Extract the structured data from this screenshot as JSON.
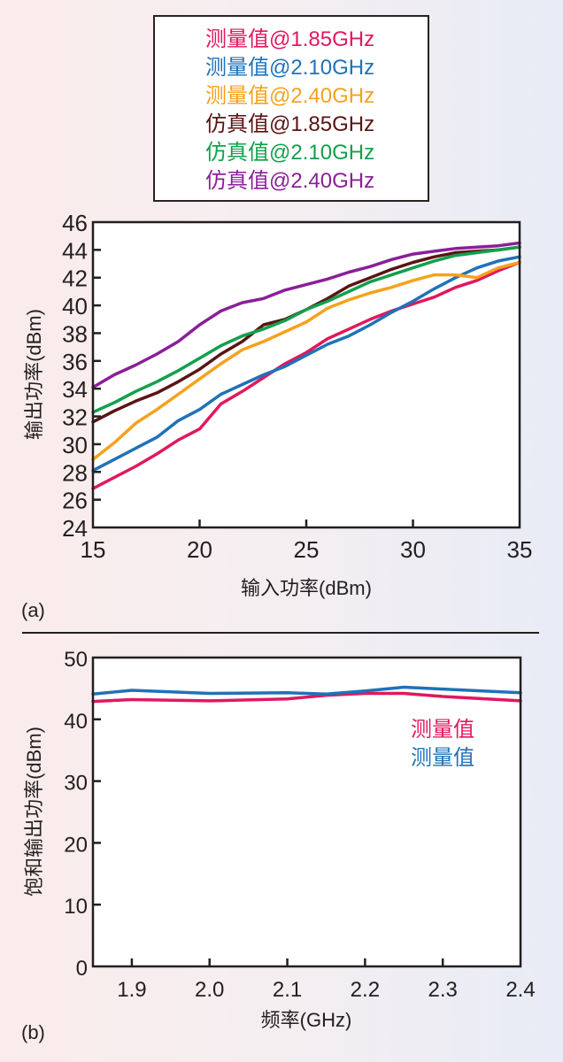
{
  "legend": [
    {
      "label": "测量值@1.85GHz",
      "color": "#e0185f"
    },
    {
      "label": "测量值@2.10GHz",
      "color": "#1f72b8"
    },
    {
      "label": "测量值@2.40GHz",
      "color": "#f5a21c"
    },
    {
      "label": "仿真值@1.85GHz",
      "color": "#5a1414"
    },
    {
      "label": "仿真值@2.10GHz",
      "color": "#12a04c"
    },
    {
      "label": "仿真值@2.40GHz",
      "color": "#8a1f98"
    }
  ],
  "chart_data": [
    {
      "panel_label": "(a)",
      "type": "line",
      "title": "",
      "xlabel": "输入功率(dBm)",
      "ylabel": "输出功率(dBm)",
      "xlim": [
        15,
        35
      ],
      "ylim": [
        24,
        46
      ],
      "xticks": [
        15,
        20,
        25,
        30,
        35
      ],
      "yticks": [
        24,
        26,
        28,
        30,
        32,
        34,
        36,
        38,
        40,
        42,
        44,
        46
      ],
      "grid": false,
      "legend_position": "top-center (above plot)",
      "x": [
        15,
        16,
        17,
        18,
        19,
        20,
        21,
        22,
        23,
        24,
        25,
        26,
        27,
        28,
        29,
        30,
        31,
        32,
        33,
        34,
        35
      ],
      "series": [
        {
          "name": "测量值@1.85GHz",
          "color": "#e0185f",
          "values": [
            26.8,
            27.6,
            28.4,
            29.3,
            30.3,
            31.1,
            32.9,
            33.8,
            34.8,
            35.8,
            36.6,
            37.6,
            38.3,
            39.0,
            39.6,
            40.1,
            40.6,
            41.3,
            41.8,
            42.5,
            43.1
          ]
        },
        {
          "name": "测量值@2.10GHz",
          "color": "#1f72b8",
          "values": [
            28.1,
            28.9,
            29.7,
            30.5,
            31.7,
            32.5,
            33.6,
            34.3,
            35.0,
            35.6,
            36.4,
            37.2,
            37.8,
            38.6,
            39.5,
            40.3,
            41.2,
            42.0,
            42.7,
            43.2,
            43.5
          ]
        },
        {
          "name": "测量值@2.40GHz",
          "color": "#f5a21c",
          "values": [
            28.9,
            30.1,
            31.5,
            32.5,
            33.6,
            34.7,
            35.8,
            36.8,
            37.4,
            38.1,
            38.8,
            39.8,
            40.4,
            40.9,
            41.3,
            41.8,
            42.2,
            42.2,
            42.0,
            42.7,
            43.1
          ]
        },
        {
          "name": "仿真值@1.85GHz",
          "color": "#5a1414",
          "values": [
            31.6,
            32.4,
            33.1,
            33.7,
            34.5,
            35.4,
            36.5,
            37.4,
            38.6,
            39.0,
            39.7,
            40.5,
            41.4,
            42.0,
            42.6,
            43.1,
            43.5,
            43.8,
            43.9,
            44.0,
            44.2
          ]
        },
        {
          "name": "仿真值@2.10GHz",
          "color": "#12a04c",
          "values": [
            32.3,
            33.0,
            33.8,
            34.5,
            35.3,
            36.2,
            37.1,
            37.8,
            38.3,
            38.9,
            39.7,
            40.3,
            41.0,
            41.7,
            42.2,
            42.7,
            43.2,
            43.6,
            43.8,
            44.0,
            44.2
          ]
        },
        {
          "name": "仿真值@2.40GHz",
          "color": "#8a1f98",
          "values": [
            34.1,
            35.0,
            35.7,
            36.5,
            37.4,
            38.6,
            39.6,
            40.2,
            40.5,
            41.1,
            41.5,
            41.9,
            42.4,
            42.8,
            43.3,
            43.7,
            43.9,
            44.1,
            44.2,
            44.3,
            44.5
          ]
        }
      ]
    },
    {
      "panel_label": "(b)",
      "type": "line",
      "title": "",
      "xlabel": "频率(GHz)",
      "ylabel": "饱和输出功率(dBm)",
      "xlim": [
        1.85,
        2.4
      ],
      "ylim": [
        0,
        50
      ],
      "xticks": [
        "1.9",
        "2.0",
        "2.1",
        "2.2",
        "2.3",
        "2.4"
      ],
      "yticks": [
        0,
        10,
        20,
        30,
        40,
        50
      ],
      "grid": false,
      "legend_position": "right, inside plot below lines",
      "x": [
        1.85,
        1.9,
        2.0,
        2.1,
        2.15,
        2.2,
        2.25,
        2.3,
        2.4
      ],
      "series": [
        {
          "name": "测量值",
          "color": "#e0185f",
          "values": [
            42.9,
            43.2,
            43.0,
            43.3,
            43.9,
            44.2,
            44.2,
            43.7,
            43.0
          ]
        },
        {
          "name": "测量值",
          "color": "#1f72b8",
          "values": [
            44.1,
            44.7,
            44.2,
            44.3,
            44.1,
            44.6,
            45.2,
            44.9,
            44.3
          ]
        }
      ]
    }
  ]
}
